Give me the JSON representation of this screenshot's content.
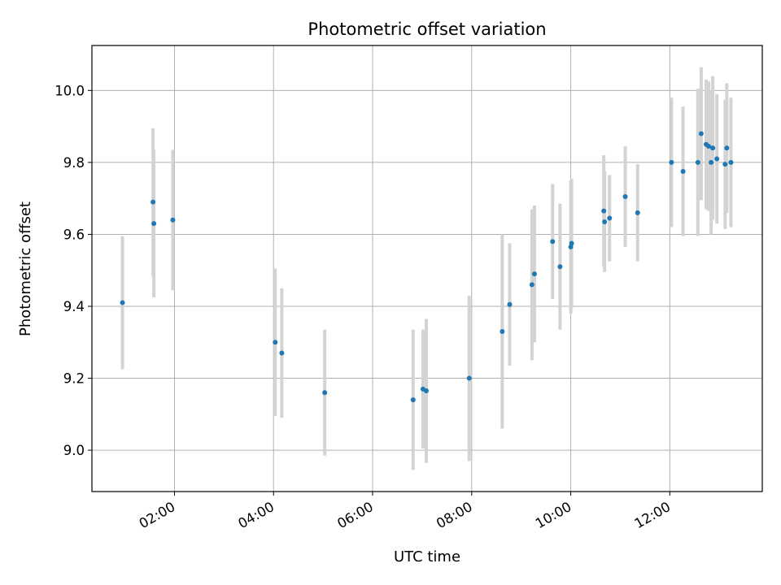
{
  "chart_data": {
    "type": "scatter",
    "title": "Photometric offset variation",
    "xlabel": "UTC time",
    "ylabel": "Photometric offset",
    "x_ticks": [
      "02:00",
      "04:00",
      "06:00",
      "08:00",
      "10:00",
      "12:00"
    ],
    "y_ticks": [
      "9.0",
      "9.2",
      "9.4",
      "9.6",
      "9.8",
      "10.0"
    ],
    "xlim": [
      "00:20",
      "13:52"
    ],
    "ylim": [
      8.885,
      10.125
    ],
    "grid": true,
    "colors": {
      "point": "#1f77b4",
      "errorbar": "#d3d3d3",
      "grid": "#b0b0b0"
    },
    "points": [
      {
        "x": "00:57",
        "y": 9.41,
        "yerr": 0.185
      },
      {
        "x": "01:34",
        "y": 9.69,
        "yerr": 0.205
      },
      {
        "x": "01:35",
        "y": 9.63,
        "yerr": 0.205
      },
      {
        "x": "01:58",
        "y": 9.64,
        "yerr": 0.195
      },
      {
        "x": "04:02",
        "y": 9.3,
        "yerr": 0.205
      },
      {
        "x": "04:10",
        "y": 9.27,
        "yerr": 0.18
      },
      {
        "x": "05:02",
        "y": 9.16,
        "yerr": 0.175
      },
      {
        "x": "06:49",
        "y": 9.14,
        "yerr": 0.195
      },
      {
        "x": "07:01",
        "y": 9.17,
        "yerr": 0.165
      },
      {
        "x": "07:05",
        "y": 9.165,
        "yerr": 0.2
      },
      {
        "x": "07:57",
        "y": 9.2,
        "yerr": 0.23
      },
      {
        "x": "08:37",
        "y": 9.33,
        "yerr": 0.27
      },
      {
        "x": "08:46",
        "y": 9.405,
        "yerr": 0.17
      },
      {
        "x": "09:13",
        "y": 9.46,
        "yerr": 0.21
      },
      {
        "x": "09:16",
        "y": 9.49,
        "yerr": 0.19
      },
      {
        "x": "09:38",
        "y": 9.58,
        "yerr": 0.16
      },
      {
        "x": "09:47",
        "y": 9.51,
        "yerr": 0.175
      },
      {
        "x": "10:00",
        "y": 9.565,
        "yerr": 0.185
      },
      {
        "x": "10:01",
        "y": 9.575,
        "yerr": 0.18
      },
      {
        "x": "10:40",
        "y": 9.665,
        "yerr": 0.155
      },
      {
        "x": "10:41",
        "y": 9.635,
        "yerr": 0.14
      },
      {
        "x": "10:47",
        "y": 9.645,
        "yerr": 0.12
      },
      {
        "x": "11:06",
        "y": 9.705,
        "yerr": 0.14
      },
      {
        "x": "11:21",
        "y": 9.66,
        "yerr": 0.135
      },
      {
        "x": "12:02",
        "y": 9.8,
        "yerr": 0.18
      },
      {
        "x": "12:16",
        "y": 9.775,
        "yerr": 0.18
      },
      {
        "x": "12:34",
        "y": 9.8,
        "yerr": 0.205
      },
      {
        "x": "12:38",
        "y": 9.88,
        "yerr": 0.185
      },
      {
        "x": "12:44",
        "y": 9.85,
        "yerr": 0.18
      },
      {
        "x": "12:47",
        "y": 9.845,
        "yerr": 0.18
      },
      {
        "x": "12:50",
        "y": 9.8,
        "yerr": 0.2
      },
      {
        "x": "12:52",
        "y": 9.84,
        "yerr": 0.2
      },
      {
        "x": "12:57",
        "y": 9.81,
        "yerr": 0.18
      },
      {
        "x": "13:07",
        "y": 9.795,
        "yerr": 0.18
      },
      {
        "x": "13:09",
        "y": 9.84,
        "yerr": 0.18
      },
      {
        "x": "13:14",
        "y": 9.8,
        "yerr": 0.18
      }
    ]
  }
}
